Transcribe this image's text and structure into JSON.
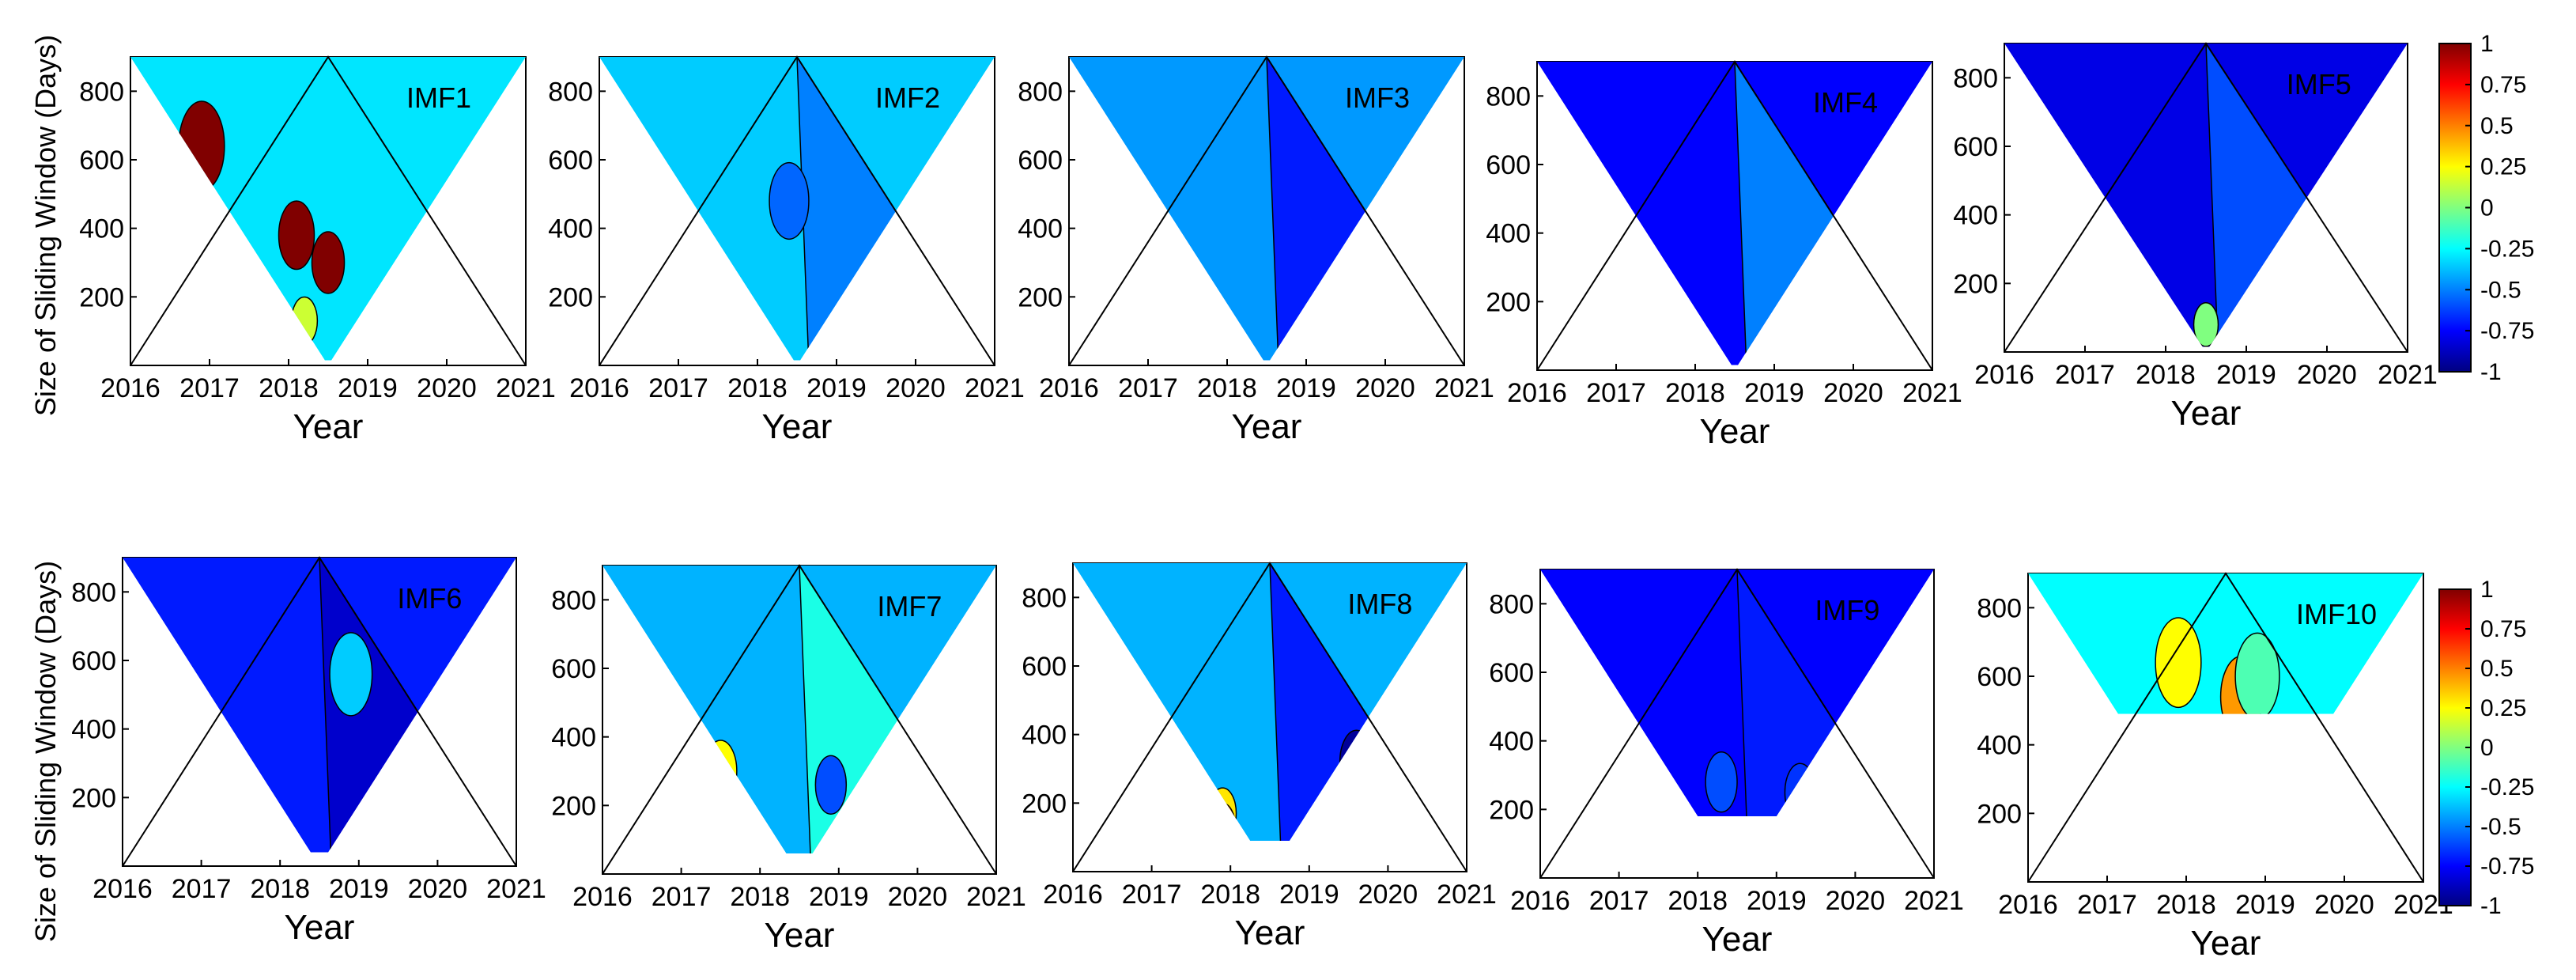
{
  "chart_data": {
    "type": "heatmap",
    "kind": "triangular sliding-window correlation map",
    "ylabel": "Size of Sliding Window (Days)",
    "xlabel": "Year",
    "x_ticks": [
      "2016",
      "2017",
      "2018",
      "2019",
      "2020",
      "2021"
    ],
    "xlim": [
      2016,
      2021
    ],
    "y_ticks": [
      "200",
      "400",
      "600",
      "800"
    ],
    "ylim": [
      0,
      900
    ],
    "colorbar": {
      "ticks": [
        "1",
        "0.75",
        "0.5",
        "0.25",
        "0",
        "-0.25",
        "-0.5",
        "-0.75",
        "-1"
      ],
      "range": [
        -1,
        1
      ],
      "colors": [
        "#000080",
        "#0000ff",
        "#0080ff",
        "#00ffff",
        "#80ff80",
        "#ffff00",
        "#ff8000",
        "#ff0000",
        "#800000"
      ]
    },
    "panels": [
      {
        "label": "IMF1",
        "min_window": 15,
        "max_window": 900,
        "dominant_value": -0.3,
        "secondary_value": null,
        "patches": [
          {
            "year": 2018.1,
            "window": 380,
            "value": 1.0
          },
          {
            "year": 2018.5,
            "window": 300,
            "value": 1.0
          },
          {
            "year": 2016.9,
            "window": 640,
            "value": 1.0
          },
          {
            "year": 2018.2,
            "window": 130,
            "value": 0.15
          },
          {
            "year": 2016.4,
            "window": 60,
            "value": 0.3
          }
        ]
      },
      {
        "label": "IMF2",
        "min_window": 15,
        "max_window": 900,
        "dominant_value": -0.35,
        "secondary_value": -0.5,
        "patches": [
          {
            "year": 2016.5,
            "window": 120,
            "value": 0.3
          },
          {
            "year": 2016.8,
            "window": 230,
            "value": 0.05
          },
          {
            "year": 2016.7,
            "window": 300,
            "value": 1.0
          },
          {
            "year": 2018.4,
            "window": 480,
            "value": -0.55
          }
        ]
      },
      {
        "label": "IMF3",
        "min_window": 15,
        "max_window": 900,
        "dominant_value": -0.45,
        "secondary_value": -0.7,
        "patches": [
          {
            "year": 2016.8,
            "window": 80,
            "value": 0.15
          },
          {
            "year": 2017.6,
            "window": 50,
            "value": 0.1
          },
          {
            "year": 2017.3,
            "window": 220,
            "value": -0.3
          }
        ]
      },
      {
        "label": "IMF4",
        "min_window": 15,
        "max_window": 900,
        "dominant_value": -0.75,
        "secondary_value": -0.5,
        "patches": [
          {
            "year": 2017.1,
            "window": 80,
            "value": 0.3
          },
          {
            "year": 2017.6,
            "window": 110,
            "value": -0.2
          },
          {
            "year": 2017.3,
            "window": 180,
            "value": -0.35
          },
          {
            "year": 2017.0,
            "window": 30,
            "value": -1.0
          }
        ]
      },
      {
        "label": "IMF5",
        "min_window": 15,
        "max_window": 900,
        "dominant_value": -0.8,
        "secondary_value": -0.6,
        "patches": [
          {
            "year": 2016.4,
            "window": 60,
            "value": 0.5
          },
          {
            "year": 2018.5,
            "window": 80,
            "value": 0.0
          },
          {
            "year": 2018.9,
            "window": 60,
            "value": 0.1
          },
          {
            "year": 2019.2,
            "window": 140,
            "value": -0.4
          }
        ]
      },
      {
        "label": "IMF6",
        "min_window": 40,
        "max_window": 900,
        "dominant_value": -0.7,
        "secondary_value": -0.85,
        "patches": [
          {
            "year": 2017.6,
            "window": 100,
            "value": 0.25
          },
          {
            "year": 2019.8,
            "window": 130,
            "value": -0.3
          },
          {
            "year": 2018.9,
            "window": 560,
            "value": -0.35
          },
          {
            "year": 2017.1,
            "window": 130,
            "value": -0.85
          }
        ]
      },
      {
        "label": "IMF7",
        "min_window": 60,
        "max_window": 900,
        "dominant_value": -0.4,
        "secondary_value": -0.2,
        "patches": [
          {
            "year": 2017.5,
            "window": 300,
            "value": 0.25
          },
          {
            "year": 2017.4,
            "window": 160,
            "value": 0.5
          },
          {
            "year": 2017.3,
            "window": 90,
            "value": 0.8
          },
          {
            "year": 2018.9,
            "window": 260,
            "value": -0.6
          },
          {
            "year": 2020.1,
            "window": 100,
            "value": 0.25
          },
          {
            "year": 2020.4,
            "window": 70,
            "value": 0.6
          },
          {
            "year": 2016.7,
            "window": 120,
            "value": -0.8
          }
        ]
      },
      {
        "label": "IMF8",
        "min_window": 90,
        "max_window": 900,
        "dominant_value": -0.4,
        "secondary_value": -0.7,
        "patches": [
          {
            "year": 2017.3,
            "window": 230,
            "value": 0.05
          },
          {
            "year": 2017.9,
            "window": 170,
            "value": 0.3
          },
          {
            "year": 2017.9,
            "window": 130,
            "value": 0.6
          },
          {
            "year": 2019.6,
            "window": 320,
            "value": -0.95
          },
          {
            "year": 2016.6,
            "window": 160,
            "value": 0.25
          }
        ]
      },
      {
        "label": "IMF9",
        "min_window": 180,
        "max_window": 900,
        "dominant_value": -0.75,
        "secondary_value": -0.7,
        "patches": [
          {
            "year": 2018.3,
            "window": 280,
            "value": -0.6
          },
          {
            "year": 2019.3,
            "window": 250,
            "value": -0.65
          }
        ]
      },
      {
        "label": "IMF10",
        "min_window": 490,
        "max_window": 900,
        "dominant_value": -0.25,
        "secondary_value": null,
        "patches": [
          {
            "year": 2017.9,
            "window": 640,
            "value": 0.25
          },
          {
            "year": 2018.7,
            "window": 540,
            "value": 0.45
          },
          {
            "year": 2018.9,
            "window": 600,
            "value": -0.1
          }
        ]
      }
    ]
  }
}
